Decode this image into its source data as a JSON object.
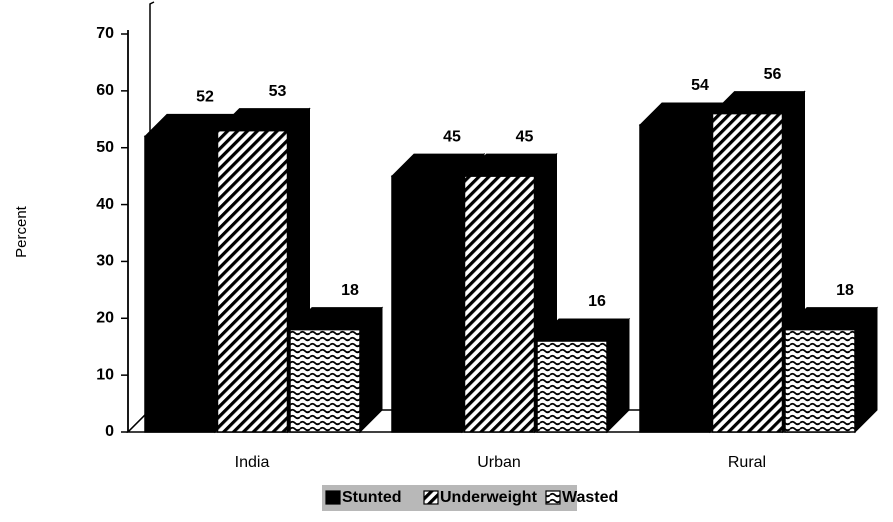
{
  "chart_data": {
    "type": "bar3d",
    "y_label": "Percent",
    "categories": [
      "India",
      "Urban",
      "Rural"
    ],
    "series": [
      {
        "name": "Stunted",
        "color": "#000000",
        "pattern": "solid",
        "values": [
          52,
          45,
          54
        ]
      },
      {
        "name": "Underweight",
        "color": "#000000",
        "pattern": "diagonal",
        "values": [
          53,
          45,
          56
        ]
      },
      {
        "name": "Wasted",
        "color": "#000000",
        "pattern": "wave",
        "values": [
          18,
          16,
          18
        ]
      }
    ],
    "ylim": [
      0,
      70
    ],
    "yticks": [
      0,
      10,
      20,
      30,
      40,
      50,
      60,
      70
    ],
    "legend": "bottom"
  }
}
